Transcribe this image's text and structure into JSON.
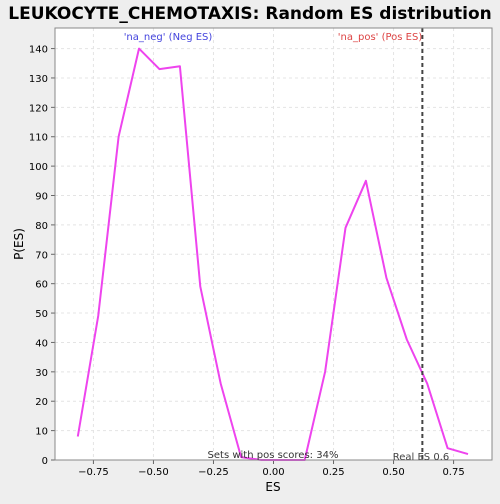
{
  "chart_data": {
    "type": "line",
    "title": "LEUKOCYTE_CHEMOTAXIS: Random ES distribution",
    "xlabel": "ES",
    "ylabel": "P(ES)",
    "xlim": [
      -0.91,
      0.91
    ],
    "ylim": [
      0,
      147
    ],
    "xticks": [
      -0.75,
      -0.5,
      -0.25,
      0.0,
      0.25,
      0.5,
      0.75
    ],
    "xtick_labels": [
      "−0.75",
      "−0.50",
      "−0.25",
      "0.00",
      "0.25",
      "0.50",
      "0.75"
    ],
    "yticks": [
      0,
      10,
      20,
      30,
      40,
      50,
      60,
      70,
      80,
      90,
      100,
      110,
      120,
      130,
      140
    ],
    "grid": true,
    "series": [
      {
        "color": "#ee44ee",
        "x": [
          -0.815,
          -0.73,
          -0.645,
          -0.56,
          -0.475,
          -0.39,
          -0.305,
          -0.22,
          -0.135,
          -0.05,
          0.035,
          0.13,
          0.215,
          0.3,
          0.385,
          0.47,
          0.555,
          0.64,
          0.725,
          0.81
        ],
        "values": [
          8,
          49,
          110,
          140,
          133,
          134,
          59,
          26,
          1,
          0,
          0,
          0,
          30,
          79,
          95,
          62,
          41,
          26,
          4,
          2
        ]
      }
    ],
    "real_es": 0.62,
    "real_es_label": "Real ES 0.6",
    "annotations": {
      "neg": {
        "text": "'na_neg' (Neg ES)",
        "color": "#4444dd"
      },
      "pos": {
        "text": "'na_pos' (Pos ES)",
        "color": "#dd4444"
      },
      "pos_scores": "Sets with pos scores: 34%"
    }
  }
}
